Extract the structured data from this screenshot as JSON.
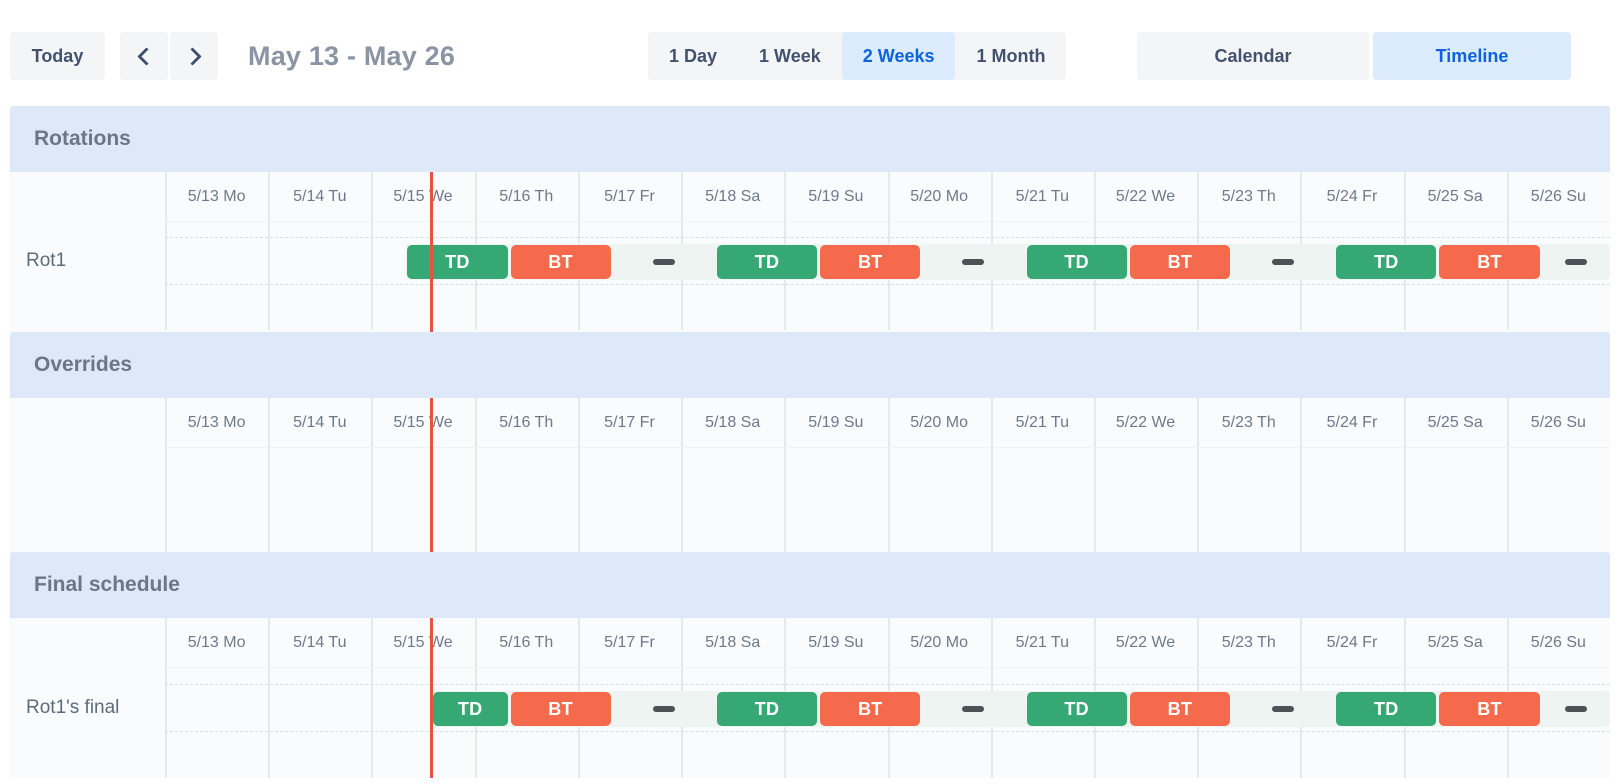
{
  "toolbar": {
    "today_label": "Today",
    "prev_icon": "chevron-left",
    "next_icon": "chevron-right",
    "date_range": "May 13 - May 26",
    "views": [
      {
        "label": "1 Day",
        "selected": false
      },
      {
        "label": "1 Week",
        "selected": false
      },
      {
        "label": "2 Weeks",
        "selected": true
      },
      {
        "label": "1 Month",
        "selected": false
      }
    ],
    "modes": [
      {
        "label": "Calendar",
        "selected": false
      },
      {
        "label": "Timeline",
        "selected": true
      }
    ]
  },
  "colors": {
    "selected_bg": "#dcebfe",
    "selected_text": "#0b63e0",
    "section_band": "#dde8f9",
    "now_line": "#e65440",
    "shift_td": "#35a873",
    "shift_bt": "#f5694c",
    "gap_dash": "#4d5257",
    "track_bg": "#eef4f1"
  },
  "timeline": {
    "days": [
      "5/13 Mo",
      "5/14 Tu",
      "5/15 We",
      "5/16 Th",
      "5/17 Fr",
      "5/18 Sa",
      "5/19 Su",
      "5/20 Mo",
      "5/21 Tu",
      "5/22 We",
      "5/23 Th",
      "5/24 Fr",
      "5/25 Sa",
      "5/26 Su"
    ],
    "now_day_index": 2.58,
    "shift_types": {
      "TD": {
        "label": "TD",
        "color": "#35a873"
      },
      "BT": {
        "label": "BT",
        "color": "#f5694c"
      }
    },
    "sections": [
      {
        "title": "Rotations",
        "rows": [
          {
            "label": "Rot1",
            "track_start": 2.333,
            "track_end": 14,
            "events": [
              {
                "kind": "shift",
                "type": "TD",
                "label": "TD",
                "start": 2.333,
                "end": 3.333
              },
              {
                "kind": "shift",
                "type": "BT",
                "label": "BT",
                "start": 3.333,
                "end": 4.333
              },
              {
                "kind": "gap",
                "center": 4.833
              },
              {
                "kind": "shift",
                "type": "TD",
                "label": "TD",
                "start": 5.333,
                "end": 6.333
              },
              {
                "kind": "shift",
                "type": "BT",
                "label": "BT",
                "start": 6.333,
                "end": 7.333
              },
              {
                "kind": "gap",
                "center": 7.833
              },
              {
                "kind": "shift",
                "type": "TD",
                "label": "TD",
                "start": 8.333,
                "end": 9.333
              },
              {
                "kind": "shift",
                "type": "BT",
                "label": "BT",
                "start": 9.333,
                "end": 10.333
              },
              {
                "kind": "gap",
                "center": 10.833
              },
              {
                "kind": "shift",
                "type": "TD",
                "label": "TD",
                "start": 11.333,
                "end": 12.333
              },
              {
                "kind": "shift",
                "type": "BT",
                "label": "BT",
                "start": 12.333,
                "end": 13.333
              },
              {
                "kind": "gap",
                "center": 13.667
              }
            ]
          }
        ]
      },
      {
        "title": "Overrides",
        "rows": []
      },
      {
        "title": "Final schedule",
        "rows": [
          {
            "label": "Rot1's final",
            "track_start": 2.58,
            "track_end": 14,
            "events": [
              {
                "kind": "shift",
                "type": "TD",
                "label": "TD",
                "start": 2.58,
                "end": 3.333
              },
              {
                "kind": "shift",
                "type": "BT",
                "label": "BT",
                "start": 3.333,
                "end": 4.333
              },
              {
                "kind": "gap",
                "center": 4.833
              },
              {
                "kind": "shift",
                "type": "TD",
                "label": "TD",
                "start": 5.333,
                "end": 6.333
              },
              {
                "kind": "shift",
                "type": "BT",
                "label": "BT",
                "start": 6.333,
                "end": 7.333
              },
              {
                "kind": "gap",
                "center": 7.833
              },
              {
                "kind": "shift",
                "type": "TD",
                "label": "TD",
                "start": 8.333,
                "end": 9.333
              },
              {
                "kind": "shift",
                "type": "BT",
                "label": "BT",
                "start": 9.333,
                "end": 10.333
              },
              {
                "kind": "gap",
                "center": 10.833
              },
              {
                "kind": "shift",
                "type": "TD",
                "label": "TD",
                "start": 11.333,
                "end": 12.333
              },
              {
                "kind": "shift",
                "type": "BT",
                "label": "BT",
                "start": 12.333,
                "end": 13.333
              },
              {
                "kind": "gap",
                "center": 13.667
              }
            ]
          }
        ]
      }
    ]
  }
}
